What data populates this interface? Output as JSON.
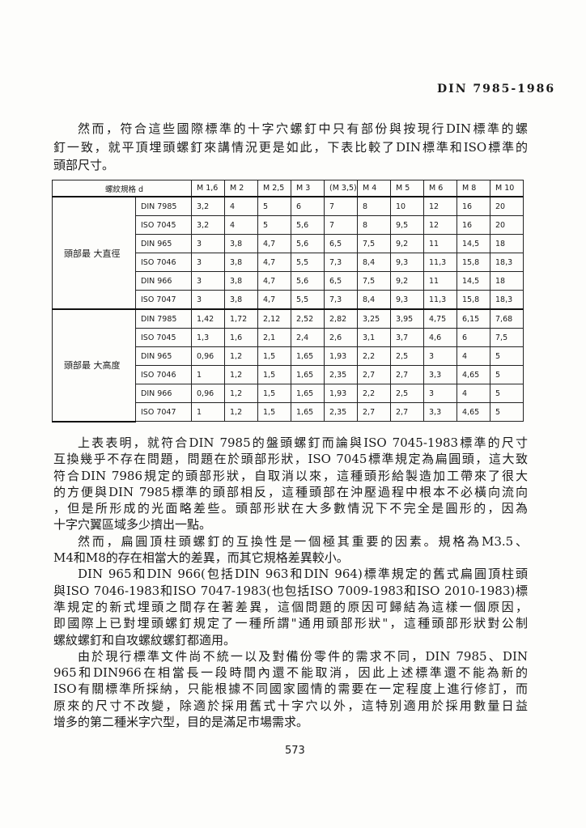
{
  "header": "DIN 7985-1986",
  "intro_lines": [
    "然而，符合這些國際標準的十字穴螺釘中只有部份與按現行DIN標準的螺",
    "釘一致，就平頂埋頭螺釘來講情況更是如此，下表比較了DIN標準和ISO標準的",
    "頭部尺寸。"
  ],
  "table": {
    "corner": "螺紋規格 d",
    "columns": [
      "M 1,6",
      "M 2",
      "M 2,5",
      "M 3",
      "(M 3,5)",
      "M 4",
      "M 5",
      "M 6",
      "M 8",
      "M 10"
    ],
    "groups": [
      {
        "label": "頭部最 大直徑",
        "rows": [
          {
            "std": "DIN 7985",
            "values": [
              "3,2",
              "4",
              "5",
              "6",
              "7",
              "8",
              "10",
              "12",
              "16",
              "20"
            ]
          },
          {
            "std": "ISO 7045",
            "values": [
              "3,2",
              "4",
              "5",
              "5,6",
              "7",
              "8",
              "9,5",
              "12",
              "16",
              "20"
            ]
          },
          {
            "std": "DIN 965",
            "values": [
              "3",
              "3,8",
              "4,7",
              "5,6",
              "6,5",
              "7,5",
              "9,2",
              "11",
              "14,5",
              "18"
            ]
          },
          {
            "std": "ISO 7046",
            "values": [
              "3",
              "3,8",
              "4,7",
              "5,5",
              "7,3",
              "8,4",
              "9,3",
              "11,3",
              "15,8",
              "18,3"
            ]
          },
          {
            "std": "DIN 966",
            "values": [
              "3",
              "3,8",
              "4,7",
              "5,6",
              "6,5",
              "7,5",
              "9,2",
              "11",
              "14,5",
              "18"
            ]
          },
          {
            "std": "ISO 7047",
            "values": [
              "3",
              "3,8",
              "4,7",
              "5,5",
              "7,3",
              "8,4",
              "9,3",
              "11,3",
              "15,8",
              "18,3"
            ]
          }
        ]
      },
      {
        "label": "頭部最 大高度",
        "rows": [
          {
            "std": "DIN 7985",
            "values": [
              "1,42",
              "1,72",
              "2,12",
              "2,52",
              "2,82",
              "3,25",
              "3,95",
              "4,75",
              "6,15",
              "7,68"
            ]
          },
          {
            "std": "ISO 7045",
            "values": [
              "1,3",
              "1,6",
              "2,1",
              "2,4",
              "2,6",
              "3,1",
              "3,7",
              "4,6",
              "6",
              "7,5"
            ]
          },
          {
            "std": "DIN 965",
            "values": [
              "0,96",
              "1,2",
              "1,5",
              "1,65",
              "1,93",
              "2,2",
              "2,5",
              "3",
              "4",
              "5"
            ]
          },
          {
            "std": "ISO 7046",
            "values": [
              "1",
              "1,2",
              "1,5",
              "1,65",
              "2,35",
              "2,7",
              "2,7",
              "3,3",
              "4,65",
              "5"
            ]
          },
          {
            "std": "DIN 966",
            "values": [
              "0,96",
              "1,2",
              "1,5",
              "1,65",
              "1,93",
              "2,2",
              "2,5",
              "3",
              "4",
              "5"
            ]
          },
          {
            "std": "ISO 7047",
            "values": [
              "1",
              "1,2",
              "1,5",
              "1,65",
              "2,35",
              "2,7",
              "2,7",
              "3,3",
              "4,65",
              "5"
            ]
          }
        ]
      }
    ]
  },
  "body_lines": [
    {
      "t": "上表表明，就符合DIN 7985的盤頭螺釘而論與ISO 7045-1983標準的尺寸",
      "ind": true
    },
    {
      "t": "互換幾乎不存在問題，問題在於頭部形狀，ISO 7045標準規定為扁圓頭，這大致"
    },
    {
      "t": "符合DIN 7986規定的頭部形狀，自取消以來，這種頭形給製造加工帶來了很大"
    },
    {
      "t": "的方便與DIN 7985標準的頭部相反，這種頭部在沖壓過程中根本不必橫向流向"
    },
    {
      "t": "，但是所形成的光面略差些。頭部形狀在大多數情況下不完全是圓形的，因為"
    },
    {
      "t": "十字穴翼區域多少擠出一點。",
      "last": true
    },
    {
      "t": "然而，扁圓頂柱頭螺釘的互換性是一個極其重要的因素。規格為M3.5、",
      "ind": true
    },
    {
      "t": "M4和M8的存在相當大的差異，而其它規格差異較小。",
      "last": true
    },
    {
      "t": "DIN 965和DIN 966(包括DIN 963和DIN 964)標準規定的舊式扁圓頂柱頭",
      "ind": true
    },
    {
      "t": "與ISO 7046-1983和ISO 7047-1983(也包括ISO 7009-1983和ISO 2010-1983)標"
    },
    {
      "t": "準規定的新式埋頭之間存在著差異，這個問題的原因可歸結為這樣一個原因，"
    },
    {
      "t": "即國際上已對埋頭螺釘規定了一種所謂\"通用頭部形狀\"，這種頭部形狀對公制"
    },
    {
      "t": "螺紋螺釘和自攻螺紋螺釘都適用。",
      "last": true
    },
    {
      "t": "由於現行標準文件尚不統一以及對備份零件的需求不同，DIN 7985、DIN",
      "ind": true
    },
    {
      "t": "965和DIN966在相當長一段時間內還不能取消，因此上述標準還不能為新的"
    },
    {
      "t": "ISO有關標準所採納，只能根據不同國家國情的需要在一定程度上進行修訂，而"
    },
    {
      "t": "原來的尺寸不改變，除適於採用舊式十字穴以外，這特別適用於採用數量日益"
    },
    {
      "t": "增多的第二種米字穴型，目的是滿足市場需求。",
      "last": true
    }
  ],
  "page_number": "573"
}
